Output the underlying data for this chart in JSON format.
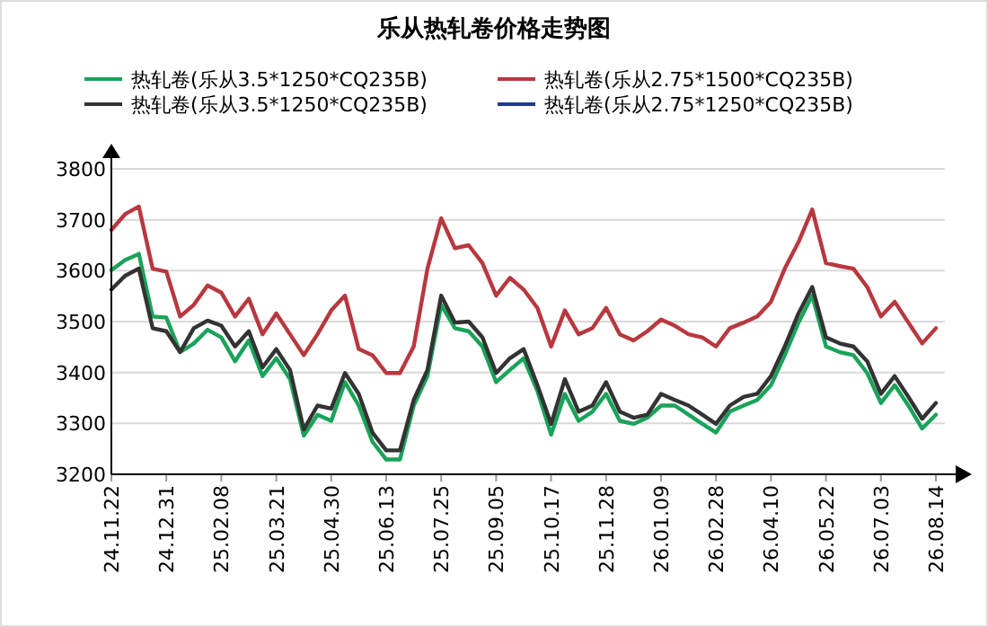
{
  "chart_data": {
    "type": "line",
    "title": "乐从热轧卷价格走势图",
    "categories": [
      "24.11.22",
      null,
      null,
      null,
      "24.12.31",
      null,
      null,
      null,
      "25.02.08",
      null,
      null,
      null,
      "25.03.21",
      null,
      null,
      null,
      "25.04.30",
      null,
      null,
      null,
      "25.06.13",
      null,
      null,
      null,
      "25.07.25",
      null,
      null,
      null,
      "25.09.05",
      null,
      null,
      null,
      "25.10.17",
      null,
      null,
      null,
      "25.11.28",
      null,
      null,
      null,
      "26.01.09",
      null,
      null,
      null,
      "26.02.28",
      null,
      null,
      null,
      "26.04.10",
      null,
      null,
      null,
      "26.05.22",
      null,
      null,
      null,
      "26.07.03",
      null,
      null,
      null,
      "26.08.14"
    ],
    "series": [
      {
        "name": "热轧卷(乐从3.5*1250*CQ235B)",
        "color": "#1aa35a",
        "values": [
          3601,
          3621,
          3633,
          3510,
          3508,
          3440,
          3457,
          3484,
          3469,
          3422,
          3463,
          3393,
          3428,
          3387,
          3276,
          3317,
          3305,
          3381,
          3335,
          3264,
          3229,
          3229,
          3335,
          3393,
          3533,
          3487,
          3481,
          3451,
          3381,
          3405,
          3428,
          3364,
          3278,
          3358,
          3305,
          3323,
          3358,
          3305,
          3299,
          3311,
          3335,
          3335,
          3317,
          3299,
          3282,
          3323,
          3335,
          3346,
          3375,
          3434,
          3498,
          3551,
          3451,
          3440,
          3434,
          3399,
          3340,
          3375,
          3335,
          3290,
          3317
        ]
      },
      {
        "name": "热轧卷(乐从2.75*1500*CQ235B)",
        "color": "#b8383f",
        "values": [
          3680,
          3711,
          3726,
          3604,
          3598,
          3510,
          3533,
          3571,
          3557,
          3510,
          3545,
          3475,
          3516,
          3475,
          3434,
          3475,
          3522,
          3551,
          3446,
          3434,
          3399,
          3399,
          3451,
          3604,
          3703,
          3644,
          3650,
          3615,
          3551,
          3586,
          3563,
          3527,
          3451,
          3522,
          3475,
          3487,
          3527,
          3475,
          3463,
          3481,
          3504,
          3492,
          3475,
          3469,
          3451,
          3487,
          3498,
          3510,
          3539,
          3604,
          3656,
          3720,
          3615,
          3609,
          3604,
          3568,
          3510,
          3539,
          3498,
          3457,
          3487
        ]
      },
      {
        "name": "热轧卷(乐从3.5*1250*CQ235B)",
        "color": "#333333",
        "values": [
          3563,
          3590,
          3604,
          3487,
          3481,
          3440,
          3487,
          3502,
          3492,
          3451,
          3481,
          3410,
          3446,
          3405,
          3288,
          3335,
          3329,
          3399,
          3358,
          3282,
          3247,
          3247,
          3346,
          3405,
          3551,
          3498,
          3500,
          3469,
          3399,
          3428,
          3446,
          3375,
          3299,
          3387,
          3323,
          3335,
          3381,
          3323,
          3311,
          3317,
          3358,
          3346,
          3335,
          3317,
          3299,
          3335,
          3352,
          3358,
          3393,
          3451,
          3516,
          3568,
          3469,
          3457,
          3451,
          3422,
          3358,
          3393,
          3352,
          3309,
          3340
        ]
      },
      {
        "name": "热轧卷(乐从2.75*1250*CQ235B)",
        "color": "#1f3a8a",
        "values": [
          null,
          null,
          null,
          null,
          null,
          null,
          null,
          null,
          null,
          null,
          null,
          null,
          null,
          null,
          null,
          null,
          null,
          null,
          null,
          null,
          null,
          null,
          null,
          null,
          null,
          null,
          null,
          null,
          null,
          null,
          null,
          null,
          null,
          null,
          null,
          null,
          null,
          null,
          null,
          null,
          null,
          null,
          null,
          null,
          null,
          null,
          null,
          null,
          null,
          null,
          null,
          null,
          null,
          null,
          null,
          null,
          null,
          null,
          null,
          null,
          null
        ]
      }
    ],
    "ylim": [
      3200,
      3800
    ],
    "yticks": [
      3200,
      3300,
      3400,
      3500,
      3600,
      3700,
      3800
    ],
    "grid": "y",
    "legend": "top"
  }
}
